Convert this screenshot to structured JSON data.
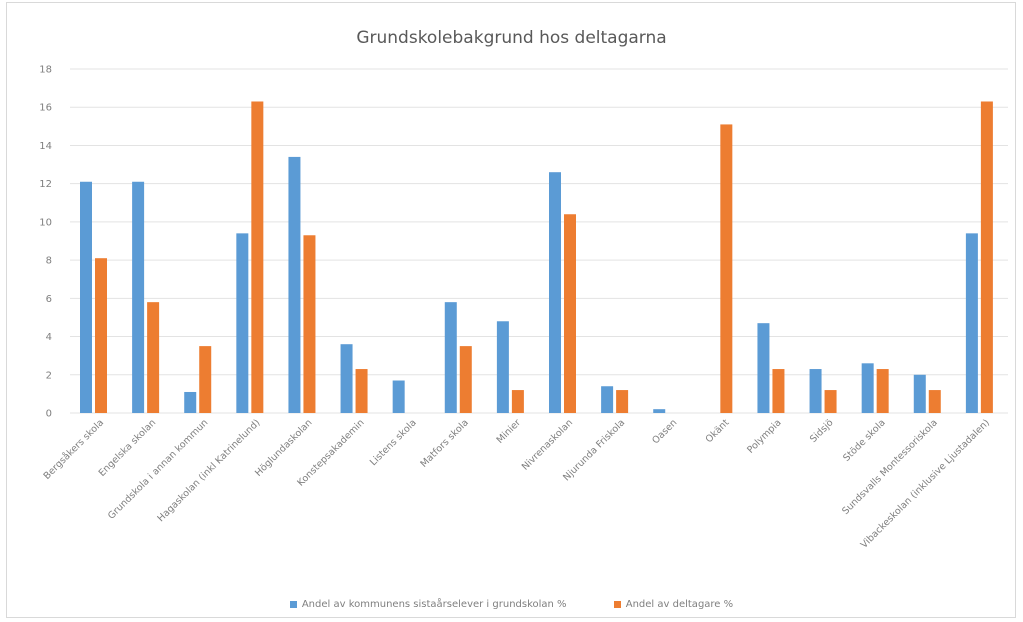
{
  "chart_data": {
    "type": "bar",
    "title": "Grundskolebakgrund  hos deltagarna",
    "categories": [
      "Bergsåkers skola",
      "Engelska skolan",
      "Grundskola i annan kommun",
      "Hagaskolan (inkl Katrinelund)",
      "Höglundaskolan",
      "Konstepsakademin",
      "Listens skola",
      "Matfors skola",
      "Minier",
      "Nivrenaskolan",
      "Njurunda Friskola",
      "Oasen",
      "Okänt",
      "Polympia",
      "Sidsjö",
      "Stöde skola",
      "Sundsvalls Montessoriskola",
      "Vibackeskolan (inklusive Ljustadalen)"
    ],
    "series": [
      {
        "name": "Andel av kommunens sistaårselever i grundskolan %",
        "color": "#5b9bd5",
        "values": [
          12.1,
          12.1,
          1.1,
          9.4,
          13.4,
          3.6,
          1.7,
          5.8,
          4.8,
          12.6,
          1.4,
          0.2,
          0,
          4.7,
          2.3,
          2.6,
          2.0,
          9.4
        ]
      },
      {
        "name": "Andel av deltagare %",
        "color": "#ed7d31",
        "values": [
          8.1,
          5.8,
          3.5,
          16.3,
          9.3,
          2.3,
          0,
          3.5,
          1.2,
          10.4,
          1.2,
          0,
          15.1,
          2.3,
          1.2,
          2.3,
          1.2,
          16.3
        ]
      }
    ],
    "ylim": [
      0,
      18
    ],
    "yticks": [
      0,
      2,
      4,
      6,
      8,
      10,
      12,
      14,
      16,
      18
    ],
    "grid": true,
    "legend_position": "bottom"
  }
}
